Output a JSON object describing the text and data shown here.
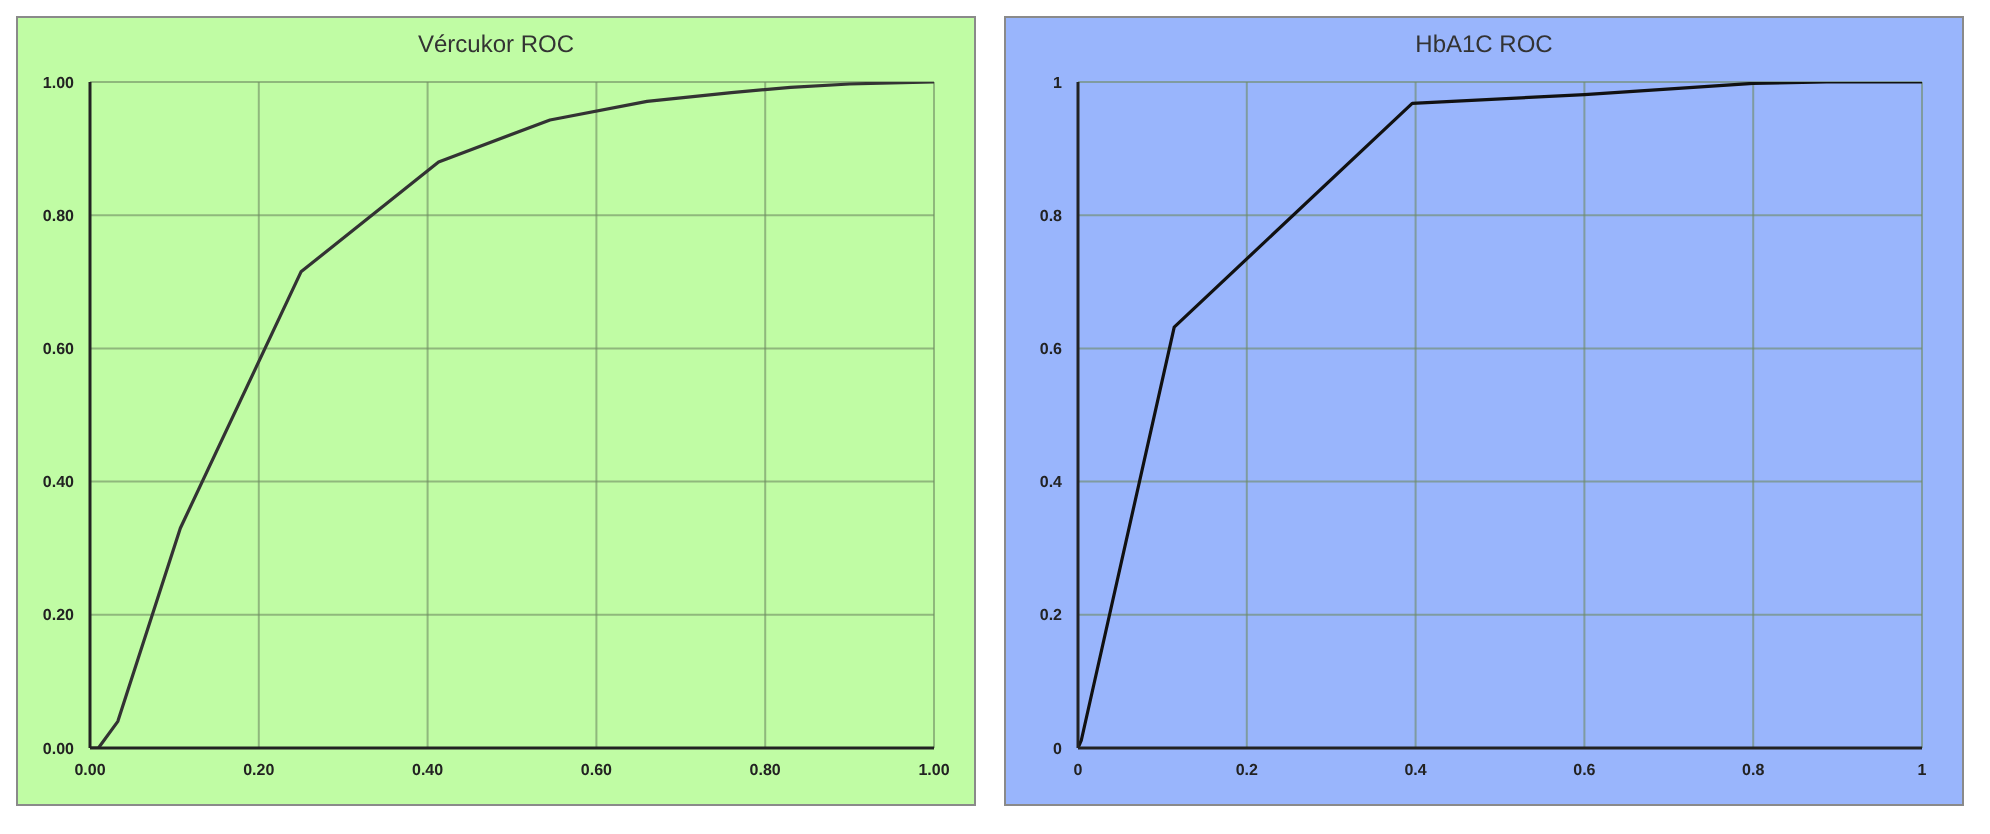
{
  "chart_data": [
    {
      "type": "line",
      "title": "Vércukor ROC",
      "series": [
        {
          "color": "#333333",
          "x": [
            0,
            0.01,
            0.033,
            0.107,
            0.25,
            0.413,
            0.545,
            0.66,
            0.76,
            0.83,
            0.9,
            1.0
          ],
          "values": [
            0,
            0,
            0.04,
            0.33,
            0.715,
            0.88,
            0.943,
            0.971,
            0.984,
            0.992,
            0.997,
            1.0
          ]
        }
      ],
      "xlim": [
        0,
        1
      ],
      "ylim": [
        0,
        1
      ],
      "xticks": [
        {
          "value": 0,
          "label": "0.00"
        },
        {
          "value": 0.2,
          "label": "0.20"
        },
        {
          "value": 0.4,
          "label": "0.40"
        },
        {
          "value": 0.6,
          "label": "0.60"
        },
        {
          "value": 0.8,
          "label": "0.80"
        },
        {
          "value": 1,
          "label": "1.00"
        }
      ],
      "yticks": [
        {
          "value": 0,
          "label": "0.00"
        },
        {
          "value": 0.2,
          "label": "0.20"
        },
        {
          "value": 0.4,
          "label": "0.40"
        },
        {
          "value": 0.6,
          "label": "0.60"
        },
        {
          "value": 0.8,
          "label": "0.80"
        },
        {
          "value": 1,
          "label": "1.00"
        }
      ],
      "grid": true,
      "marker": "none",
      "line_style": "solid"
    },
    {
      "type": "line",
      "title": "HbA1C ROC",
      "series": [
        {
          "color": "#111111",
          "x": [
            0,
            0.004,
            0.114,
            0.396,
            0.6,
            0.8,
            0.887,
            1.0
          ],
          "values": [
            0,
            0.012,
            0.632,
            0.968,
            0.981,
            0.998,
            1.0,
            1.0
          ]
        }
      ],
      "xlim": [
        0,
        1
      ],
      "ylim": [
        0,
        1
      ],
      "xticks": [
        0,
        0.2,
        0.4,
        0.6,
        0.8,
        1
      ],
      "yticks": [
        0,
        0.2,
        0.4,
        0.6,
        0.8,
        1
      ],
      "grid": true,
      "marker": "none",
      "line_style": "solid"
    }
  ]
}
